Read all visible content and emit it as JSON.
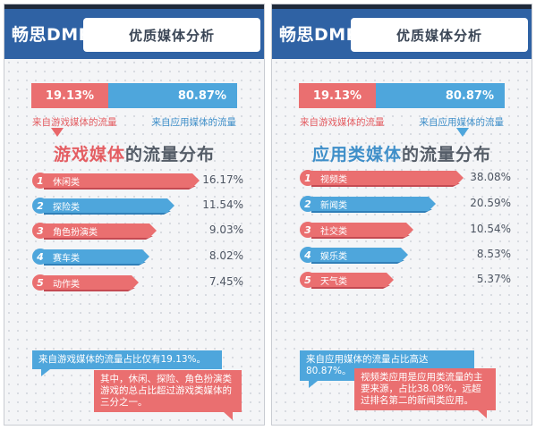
{
  "colors": {
    "header_blue": "#2f62a4",
    "game_red": "#ea6f70",
    "app_blue": "#4ea6dc"
  },
  "left": {
    "brand": "畅思DMP",
    "title": "优质媒体分析",
    "split": {
      "game_pct": "19.13%",
      "app_pct": "80.87%",
      "game_share": 0.1913
    },
    "game_label": "来自游戏媒体的流量",
    "app_label": "来自应用媒体的流量",
    "heading_highlight": "游戏媒体",
    "heading_rest": "的流量分布",
    "items": [
      {
        "rank": "1",
        "label": "休闲类",
        "value": "16.17%",
        "num": 16.17,
        "color": "red"
      },
      {
        "rank": "2",
        "label": "探险类",
        "value": "11.54%",
        "num": 11.54,
        "color": "blue"
      },
      {
        "rank": "3",
        "label": "角色扮演类",
        "value": "9.03%",
        "num": 9.03,
        "color": "red"
      },
      {
        "rank": "4",
        "label": "赛车类",
        "value": "8.02%",
        "num": 8.02,
        "color": "blue"
      },
      {
        "rank": "5",
        "label": "动作类",
        "value": "7.45%",
        "num": 7.45,
        "color": "red"
      }
    ],
    "note_blue": "来自游戏媒体的流量占比仅有19.13%。",
    "note_red": "其中，休闲、探险、角色扮演类游戏的总占比超过游戏类媒体的三分之一。"
  },
  "right": {
    "brand": "畅思DMP",
    "title": "优质媒体分析",
    "split": {
      "game_pct": "19.13%",
      "app_pct": "80.87%",
      "game_share": 0.1913
    },
    "game_label": "来自游戏媒体的流量",
    "app_label": "来自应用媒体的流量",
    "heading_highlight": "应用类媒体",
    "heading_rest": "的流量分布",
    "items": [
      {
        "rank": "1",
        "label": "视频类",
        "value": "38.08%",
        "num": 38.08,
        "color": "red"
      },
      {
        "rank": "2",
        "label": "新闻类",
        "value": "20.59%",
        "num": 20.59,
        "color": "blue"
      },
      {
        "rank": "3",
        "label": "社交类",
        "value": "10.54%",
        "num": 10.54,
        "color": "red"
      },
      {
        "rank": "4",
        "label": "娱乐类",
        "value": "8.53%",
        "num": 8.53,
        "color": "blue"
      },
      {
        "rank": "5",
        "label": "天气类",
        "value": "5.37%",
        "num": 5.37,
        "color": "red"
      }
    ],
    "note_blue": "来自应用媒体的流量占比高达80.87%。",
    "note_red": "视频类应用是应用类流量的主要来源，占比38.08%，远超过排名第二的新闻类应用。"
  }
}
